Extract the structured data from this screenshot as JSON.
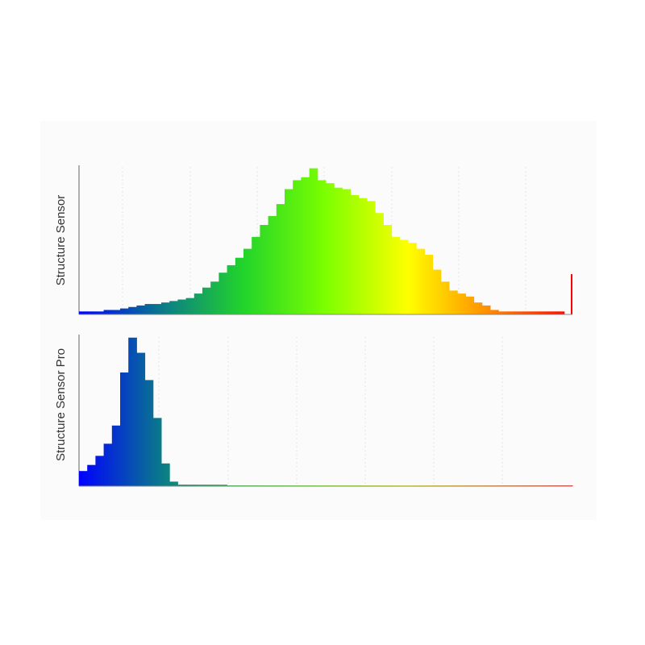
{
  "chart_data": [
    {
      "type": "histogram",
      "ylabel": "Structure Sensor",
      "values": [
        2,
        2,
        2,
        3,
        3,
        4,
        5,
        6,
        7,
        7,
        8,
        9,
        10,
        11,
        14,
        18,
        22,
        28,
        33,
        38,
        44,
        52,
        60,
        66,
        74,
        84,
        90,
        92,
        98,
        90,
        88,
        85,
        84,
        80,
        78,
        76,
        68,
        60,
        52,
        50,
        48,
        44,
        40,
        30,
        22,
        16,
        14,
        12,
        8,
        6,
        3,
        2,
        2,
        2,
        2,
        2,
        2,
        2,
        2,
        27
      ],
      "ylim": [
        0,
        100
      ],
      "gradient": [
        "#0000ff",
        "#0a7a8a",
        "#22d42a",
        "#7cff00",
        "#ffff00",
        "#ff8a00",
        "#ff0000"
      ]
    },
    {
      "type": "histogram",
      "ylabel": "Structure Sensor Pro",
      "values": [
        10,
        14,
        20,
        28,
        40,
        75,
        98,
        88,
        70,
        45,
        15,
        3,
        1,
        1,
        1,
        1,
        1,
        1,
        0.5,
        0.5,
        0.5,
        0.5,
        0.5,
        0.5,
        0.5,
        0.5,
        0.5,
        0.5,
        0.5,
        0.5,
        0.5,
        0.5,
        0.5,
        0.5,
        0.5,
        0.5,
        0.5,
        0.5,
        0.5,
        0.5,
        0.5,
        0.5,
        0.5,
        0.5,
        0.5,
        0.5,
        0.5,
        0.5,
        0.5,
        0.5,
        0.5,
        0.5,
        0.5,
        0.5,
        0.5,
        0.5,
        0.5,
        0.5,
        0.5,
        0.5
      ],
      "ylim": [
        0,
        100
      ],
      "gradient": [
        "#0000ff",
        "#0a7a8a",
        "#22d42a",
        "#7cff00",
        "#ffff00",
        "#ff8a00",
        "#ff0000"
      ]
    }
  ]
}
